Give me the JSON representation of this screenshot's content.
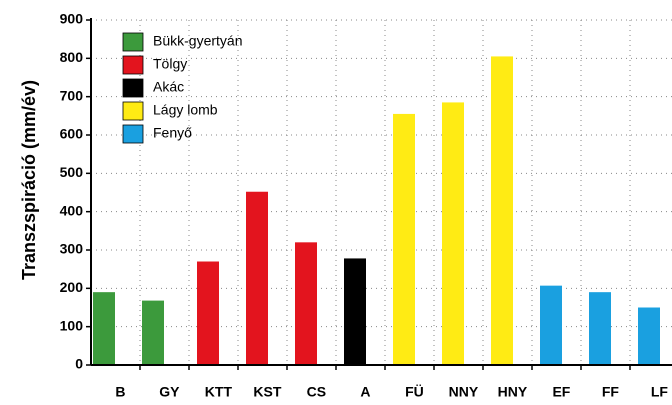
{
  "chart_data": {
    "type": "bar",
    "ylabel": "Transzspiráció (mm/év)",
    "categories": [
      "B",
      "GY",
      "KTT",
      "KST",
      "CS",
      "A",
      "FÜ",
      "NNY",
      "HNY",
      "EF",
      "FF",
      "LF"
    ],
    "values": [
      190,
      168,
      270,
      452,
      320,
      278,
      655,
      685,
      805,
      207,
      190,
      150
    ],
    "colors": [
      "#3c9a3c",
      "#3c9a3c",
      "#e3141e",
      "#e3141e",
      "#e3141e",
      "#000000",
      "#ffeb14",
      "#ffeb14",
      "#ffeb14",
      "#1aa0e0",
      "#1aa0e0",
      "#1aa0e0"
    ],
    "legend": [
      {
        "name": "Bükk-gyertyán",
        "color": "#3c9a3c"
      },
      {
        "name": "Tölgy",
        "color": "#e3141e"
      },
      {
        "name": "Akác",
        "color": "#000000"
      },
      {
        "name": "Lágy lomb",
        "color": "#ffeb14"
      },
      {
        "name": "Fenyő",
        "color": "#1aa0e0"
      }
    ],
    "legend_position": "upper left",
    "ylim": [
      0,
      900
    ],
    "yticks": [
      0,
      100,
      200,
      300,
      400,
      500,
      600,
      700,
      800,
      900
    ],
    "grid": true
  }
}
